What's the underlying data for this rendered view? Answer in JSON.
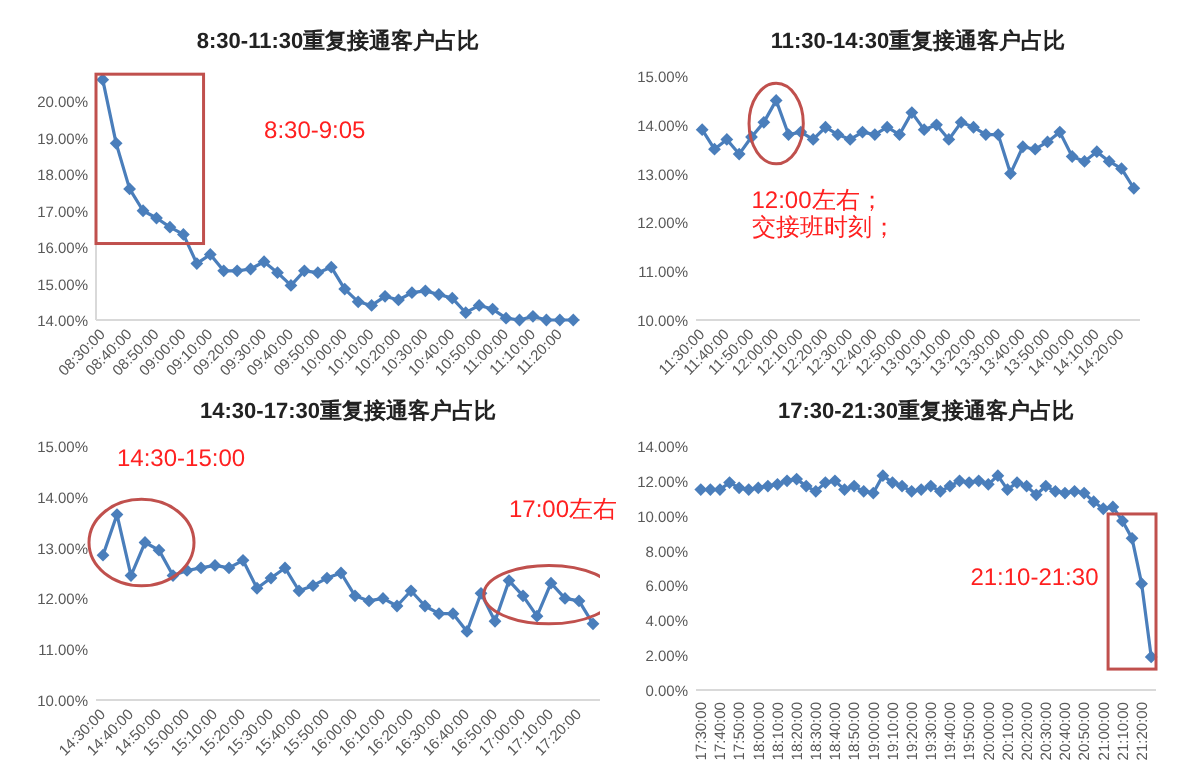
{
  "chart_data": [
    {
      "type": "line",
      "title": "8:30-11:30重复接通客户占比",
      "categories": [
        "08:30:00",
        null,
        "08:40:00",
        null,
        "08:50:00",
        null,
        "09:00:00",
        null,
        "09:10:00",
        null,
        "09:20:00",
        null,
        "09:30:00",
        null,
        "09:40:00",
        null,
        "09:50:00",
        null,
        "10:00:00",
        null,
        "10:10:00",
        null,
        "10:20:00",
        null,
        "10:30:00",
        null,
        "10:40:00",
        null,
        "10:50:00",
        null,
        "11:00:00",
        null,
        "11:10:00",
        null,
        "11:20:00",
        null
      ],
      "series": [
        {
          "color": "#4a7ebb",
          "values": [
            20.6,
            18.85,
            17.6,
            17.0,
            16.8,
            16.55,
            16.35,
            15.55,
            15.8,
            15.35,
            15.35,
            15.4,
            15.6,
            15.3,
            14.95,
            15.35,
            15.3,
            15.45,
            14.85,
            14.5,
            14.4,
            14.65,
            14.55,
            14.75,
            14.8,
            14.7,
            14.6,
            14.2,
            14.4,
            14.3,
            14.05,
            14.0,
            14.1,
            14.0,
            14.0,
            14.0
          ]
        }
      ],
      "ylim": [
        14,
        20.7
      ],
      "yticks": [
        {
          "value": 14,
          "label": "14.00%"
        },
        {
          "value": 15,
          "label": "15.00%"
        },
        {
          "value": 16,
          "label": "16.00%"
        },
        {
          "value": 17,
          "label": "17.00%"
        },
        {
          "value": 18,
          "label": "18.00%"
        },
        {
          "value": 19,
          "label": "19.00%"
        },
        {
          "value": 20,
          "label": "20.00%"
        }
      ],
      "marker": "diamond",
      "annotations": [
        "8:30-9:05"
      ]
    },
    {
      "type": "line",
      "title": "11:30-14:30重复接通客户占比",
      "categories": [
        "11:30:00",
        null,
        "11:40:00",
        null,
        "11:50:00",
        null,
        "12:00:00",
        null,
        "12:10:00",
        null,
        "12:20:00",
        null,
        "12:30:00",
        null,
        "12:40:00",
        null,
        "12:50:00",
        null,
        "13:00:00",
        null,
        "13:10:00",
        null,
        "13:20:00",
        null,
        "13:30:00",
        null,
        "13:40:00",
        null,
        "13:50:00",
        null,
        "14:00:00",
        null,
        "14:10:00",
        null,
        "14:20:00",
        null
      ],
      "series": [
        {
          "color": "#4a7ebb",
          "values": [
            13.9,
            13.5,
            13.7,
            13.4,
            13.75,
            14.05,
            14.5,
            13.8,
            13.85,
            13.7,
            13.95,
            13.8,
            13.7,
            13.85,
            13.8,
            13.95,
            13.8,
            14.25,
            13.9,
            14.0,
            13.7,
            14.05,
            13.95,
            13.8,
            13.8,
            13.0,
            13.55,
            13.5,
            13.65,
            13.85,
            13.35,
            13.25,
            13.45,
            13.25,
            13.1,
            12.7
          ]
        }
      ],
      "ylim": [
        10,
        15
      ],
      "yticks": [
        {
          "value": 10,
          "label": "10.00%"
        },
        {
          "value": 11,
          "label": "11.00%"
        },
        {
          "value": 12,
          "label": "12.00%"
        },
        {
          "value": 13,
          "label": "13.00%"
        },
        {
          "value": 14,
          "label": "14.00%"
        },
        {
          "value": 15,
          "label": "15.00%"
        }
      ],
      "marker": "diamond",
      "annotations": [
        "12:00左右；",
        "交接班时刻；"
      ]
    },
    {
      "type": "line",
      "title": "14:30-17:30重复接通客户占比",
      "categories": [
        "14:30:00",
        null,
        "14:40:00",
        null,
        "14:50:00",
        null,
        "15:00:00",
        null,
        "15:10:00",
        null,
        "15:20:00",
        null,
        "15:30:00",
        null,
        "15:40:00",
        null,
        "15:50:00",
        null,
        "16:00:00",
        null,
        "16:10:00",
        null,
        "16:20:00",
        null,
        "16:30:00",
        null,
        "16:40:00",
        null,
        "16:50:00",
        null,
        "17:00:00",
        null,
        "17:10:00",
        null,
        "17:20:00",
        null
      ],
      "series": [
        {
          "color": "#4a7ebb",
          "values": [
            12.85,
            13.65,
            12.45,
            13.1,
            12.95,
            12.45,
            12.55,
            12.6,
            12.65,
            12.6,
            12.75,
            12.2,
            12.4,
            12.6,
            12.15,
            12.25,
            12.4,
            12.5,
            12.05,
            11.95,
            12.0,
            11.85,
            12.15,
            11.85,
            11.7,
            11.7,
            11.35,
            12.1,
            11.55,
            12.35,
            12.05,
            11.65,
            12.3,
            12.0,
            11.95,
            11.5
          ]
        }
      ],
      "ylim": [
        10,
        15
      ],
      "yticks": [
        {
          "value": 10,
          "label": "10.00%"
        },
        {
          "value": 11,
          "label": "11.00%"
        },
        {
          "value": 12,
          "label": "12.00%"
        },
        {
          "value": 13,
          "label": "13.00%"
        },
        {
          "value": 14,
          "label": "14.00%"
        },
        {
          "value": 15,
          "label": "15.00%"
        }
      ],
      "marker": "diamond",
      "annotations": [
        "14:30-15:00",
        "17:00左右"
      ]
    },
    {
      "type": "line",
      "title": "17:30-21:30重复接通客户占比",
      "categories": [
        "17:30:00",
        null,
        "17:40:00",
        null,
        "17:50:00",
        null,
        "18:00:00",
        null,
        "18:10:00",
        null,
        "18:20:00",
        null,
        "18:30:00",
        null,
        "18:40:00",
        null,
        "18:50:00",
        null,
        "19:00:00",
        null,
        "19:10:00",
        null,
        "19:20:00",
        null,
        "19:30:00",
        null,
        "19:40:00",
        null,
        "19:50:00",
        null,
        "20:00:00",
        null,
        "20:10:00",
        null,
        "20:20:00",
        null,
        "20:30:00",
        null,
        "20:40:00",
        null,
        "20:50:00",
        null,
        "21:00:00",
        null,
        "21:10:00",
        null,
        "21:20:00",
        null
      ],
      "series": [
        {
          "color": "#4a7ebb",
          "values": [
            11.5,
            11.5,
            11.5,
            11.9,
            11.6,
            11.5,
            11.6,
            11.7,
            11.8,
            12.0,
            12.1,
            11.7,
            11.4,
            11.9,
            12.0,
            11.5,
            11.7,
            11.4,
            11.3,
            12.3,
            11.9,
            11.7,
            11.4,
            11.5,
            11.7,
            11.4,
            11.7,
            12.0,
            11.9,
            12.0,
            11.8,
            12.3,
            11.5,
            11.9,
            11.7,
            11.2,
            11.7,
            11.4,
            11.3,
            11.4,
            11.3,
            10.8,
            10.4,
            10.5,
            9.7,
            8.7,
            6.1,
            1.9
          ]
        }
      ],
      "ylim": [
        0,
        14
      ],
      "yticks": [
        {
          "value": 0,
          "label": "0.00%"
        },
        {
          "value": 2,
          "label": "2.00%"
        },
        {
          "value": 4,
          "label": "4.00%"
        },
        {
          "value": 6,
          "label": "6.00%"
        },
        {
          "value": 8,
          "label": "8.00%"
        },
        {
          "value": 10,
          "label": "10.00%"
        },
        {
          "value": 12,
          "label": "12.00%"
        },
        {
          "value": 14,
          "label": "14.00%"
        }
      ],
      "marker": "diamond",
      "annotations": [
        "21:10-21:30"
      ]
    }
  ]
}
